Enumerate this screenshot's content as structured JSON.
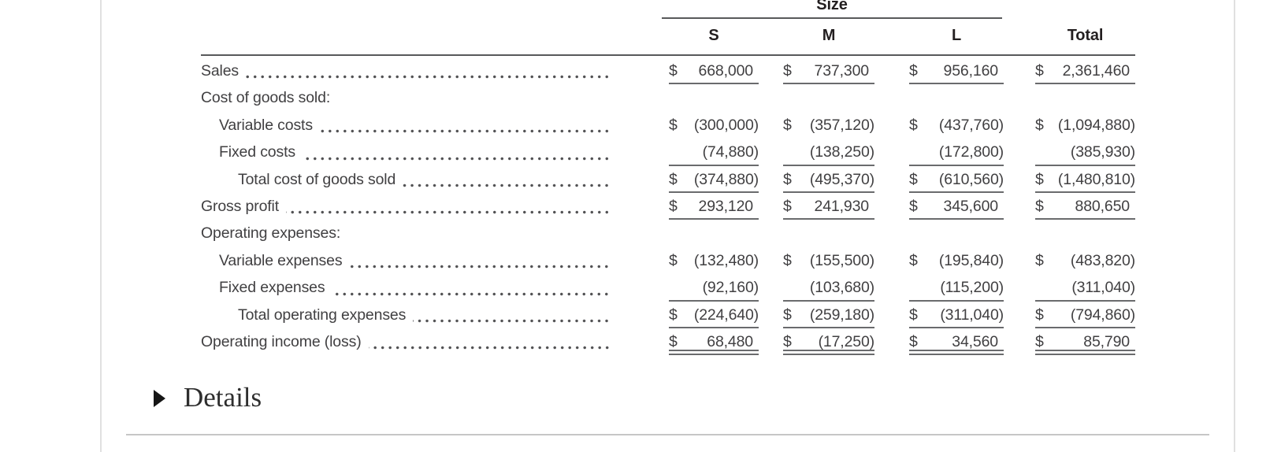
{
  "colors": {
    "table_rule": "#58595b",
    "underline": "#6a6b6d",
    "page_border": "#e0e0e0",
    "divider": "#c6c6c6",
    "text": "#414042",
    "heading": "#231f20",
    "dot": "#525254",
    "details_text": "#2e2e2e",
    "triangle": "#161616"
  },
  "table": {
    "col_group_header": "Size",
    "columns": [
      "S",
      "M",
      "L",
      "Total"
    ],
    "rows": [
      {
        "label": "Sales",
        "indent": 0,
        "leader": true,
        "rule": "single",
        "values": [
          [
            "$",
            "668,000"
          ],
          [
            "$",
            "737,300"
          ],
          [
            "$",
            "956,160"
          ],
          [
            "$",
            "2,361,460"
          ]
        ]
      },
      {
        "label": "Cost of goods sold:",
        "indent": 0,
        "leader": false,
        "values": null
      },
      {
        "label": "Variable costs",
        "indent": 1,
        "leader": true,
        "values": [
          [
            "$",
            "(300,000)"
          ],
          [
            "$",
            "(357,120)"
          ],
          [
            "$",
            "(437,760)"
          ],
          [
            "$",
            "(1,094,880)"
          ]
        ]
      },
      {
        "label": "Fixed costs",
        "indent": 1,
        "leader": true,
        "rule": "single",
        "values": [
          [
            "",
            "(74,880)"
          ],
          [
            "",
            "(138,250)"
          ],
          [
            "",
            "(172,800)"
          ],
          [
            "",
            "(385,930)"
          ]
        ]
      },
      {
        "label": "Total cost of goods sold",
        "indent": 2,
        "leader": true,
        "rule": "single",
        "values": [
          [
            "$",
            "(374,880)"
          ],
          [
            "$",
            "(495,370)"
          ],
          [
            "$",
            "(610,560)"
          ],
          [
            "$",
            "(1,480,810)"
          ]
        ]
      },
      {
        "label": "Gross profit",
        "indent": 0,
        "leader": true,
        "rule": "single",
        "values": [
          [
            "$",
            "293,120"
          ],
          [
            "$",
            "241,930"
          ],
          [
            "$",
            "345,600"
          ],
          [
            "$",
            "880,650"
          ]
        ]
      },
      {
        "label": "Operating expenses:",
        "indent": 0,
        "leader": false,
        "values": null
      },
      {
        "label": "Variable expenses",
        "indent": 1,
        "leader": true,
        "values": [
          [
            "$",
            "(132,480)"
          ],
          [
            "$",
            "(155,500)"
          ],
          [
            "$",
            "(195,840)"
          ],
          [
            "$",
            "(483,820)"
          ]
        ]
      },
      {
        "label": "Fixed expenses",
        "indent": 1,
        "leader": true,
        "rule": "single",
        "values": [
          [
            "",
            "(92,160)"
          ],
          [
            "",
            "(103,680)"
          ],
          [
            "",
            "(115,200)"
          ],
          [
            "",
            "(311,040)"
          ]
        ]
      },
      {
        "label": "Total operating expenses",
        "indent": 2,
        "leader": true,
        "rule": "single",
        "values": [
          [
            "$",
            "(224,640)"
          ],
          [
            "$",
            "(259,180)"
          ],
          [
            "$",
            "(311,040)"
          ],
          [
            "$",
            "(794,860)"
          ]
        ]
      },
      {
        "label": "Operating income (loss)",
        "indent": 0,
        "leader": true,
        "rule": "double",
        "values": [
          [
            "$",
            "68,480"
          ],
          [
            "$",
            "(17,250)"
          ],
          [
            "$",
            "34,560"
          ],
          [
            "$",
            "85,790"
          ]
        ]
      }
    ]
  },
  "details": {
    "label": "Details"
  }
}
